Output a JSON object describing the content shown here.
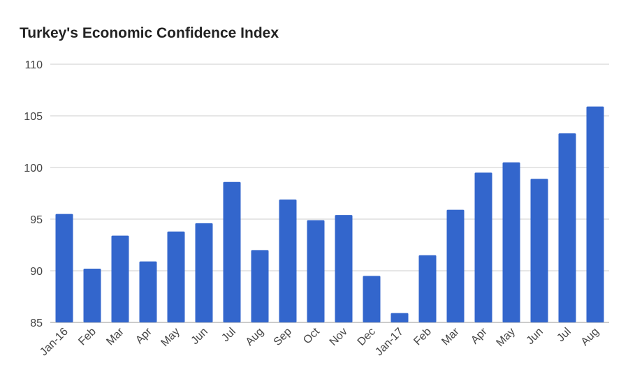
{
  "chart_data": {
    "type": "bar",
    "title": "Turkey's Economic Confidence Index",
    "xlabel": "",
    "ylabel": "",
    "ylim": [
      85,
      110
    ],
    "yticks": [
      85,
      90,
      95,
      100,
      105,
      110
    ],
    "grid": true,
    "legend": "none",
    "bar_color": "#3366cc",
    "categories": [
      "Jan-16",
      "Feb",
      "Mar",
      "Apr",
      "May",
      "Jun",
      "Jul",
      "Aug",
      "Sep",
      "Oct",
      "Nov",
      "Dec",
      "Jan-17",
      "Feb",
      "Mar",
      "Apr",
      "May",
      "Jun",
      "Jul",
      "Aug"
    ],
    "values": [
      95.5,
      90.2,
      93.4,
      90.9,
      93.8,
      94.6,
      98.6,
      92.0,
      96.9,
      94.9,
      95.4,
      89.5,
      85.9,
      91.5,
      95.9,
      99.5,
      100.5,
      98.9,
      103.3,
      105.9
    ]
  }
}
